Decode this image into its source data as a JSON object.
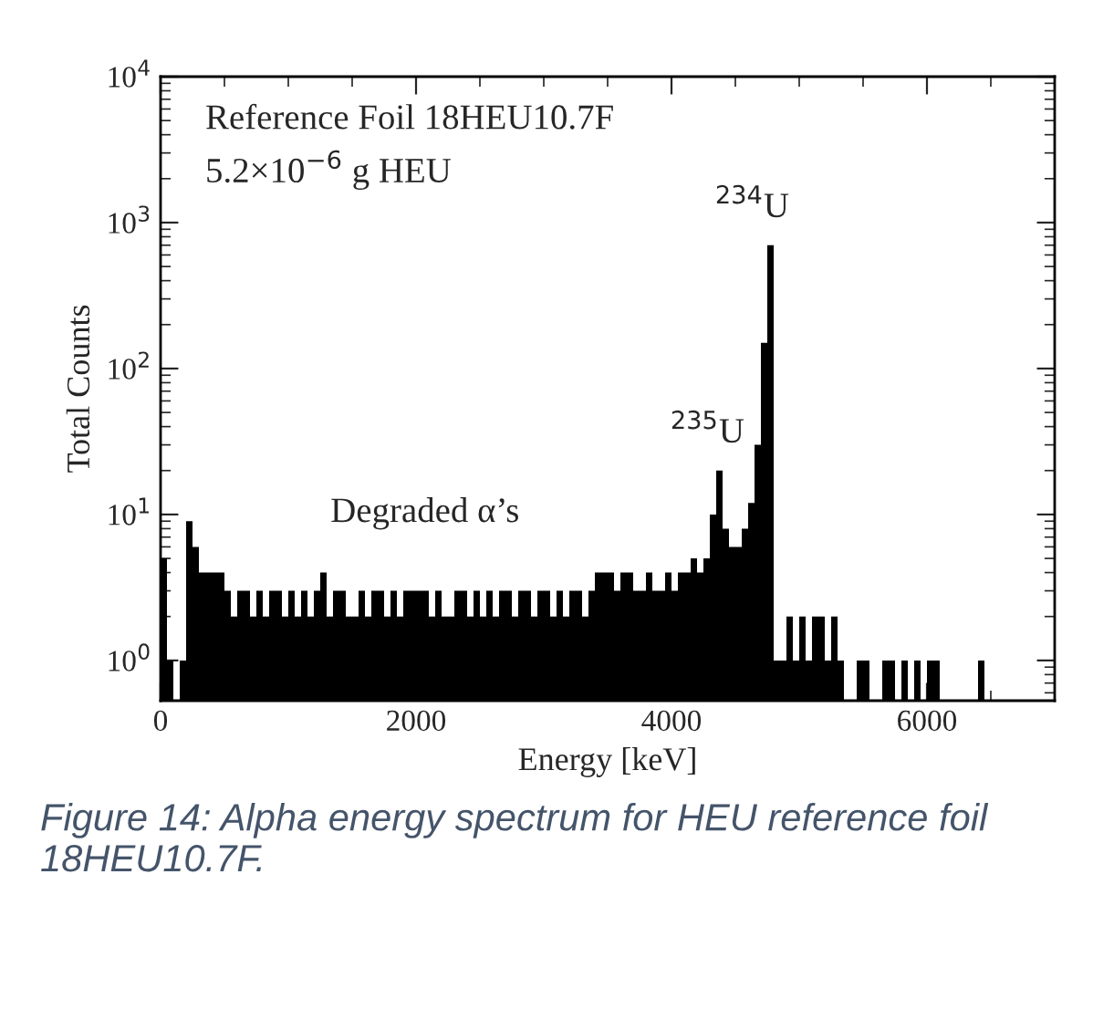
{
  "chart_data": {
    "type": "histogram",
    "xlabel": "Energy [keV]",
    "ylabel": "Total Counts",
    "bins": [
      0,
      50,
      100,
      150,
      200,
      250,
      300,
      350,
      400,
      450,
      500,
      550,
      600,
      650,
      700,
      750,
      800,
      850,
      900,
      950,
      1000,
      1050,
      1100,
      1150,
      1200,
      1250,
      1300,
      1350,
      1400,
      1450,
      1500,
      1550,
      1600,
      1650,
      1700,
      1750,
      1800,
      1850,
      1900,
      1950,
      2000,
      2050,
      2100,
      2150,
      2200,
      2250,
      2300,
      2350,
      2400,
      2450,
      2500,
      2550,
      2600,
      2650,
      2700,
      2750,
      2800,
      2850,
      2900,
      2950,
      3000,
      3050,
      3100,
      3150,
      3200,
      3250,
      3300,
      3350,
      3400,
      3450,
      3500,
      3550,
      3600,
      3650,
      3700,
      3750,
      3800,
      3850,
      3900,
      3950,
      4000,
      4050,
      4100,
      4150,
      4200,
      4250,
      4300,
      4350,
      4400,
      4450,
      4500,
      4550,
      4600,
      4650,
      4700,
      4750,
      4800,
      4850,
      4900,
      4950,
      5000,
      5050,
      5100,
      5150,
      5200,
      5250,
      5300,
      5350,
      5400,
      5450,
      5500,
      5550,
      5600,
      5650,
      5700,
      5750,
      5800,
      5850,
      5900,
      5950,
      6000,
      6050,
      6100,
      6150,
      6200,
      6250,
      6300,
      6350,
      6400,
      6450,
      6500,
      6550,
      6600,
      6650,
      6700,
      6750,
      6800,
      6850,
      6900,
      6950,
      7000
    ],
    "values": [
      5,
      1,
      null,
      1,
      9,
      6,
      4,
      4,
      4,
      4,
      3,
      2,
      3,
      3,
      2,
      3,
      2,
      3,
      3,
      2,
      3,
      2,
      3,
      2,
      3,
      4,
      2,
      3,
      3,
      2,
      2,
      3,
      2,
      3,
      3,
      2,
      3,
      2,
      3,
      3,
      3,
      3,
      2,
      3,
      2,
      2,
      3,
      3,
      2,
      3,
      2,
      3,
      2,
      3,
      3,
      2,
      3,
      3,
      2,
      3,
      3,
      2,
      3,
      2,
      3,
      3,
      2,
      3,
      4,
      4,
      4,
      3,
      4,
      4,
      3,
      3,
      4,
      3,
      3,
      4,
      3,
      4,
      4,
      5,
      4,
      5,
      10,
      20,
      8,
      6,
      6,
      8,
      12,
      30,
      150,
      700,
      1,
      1,
      2,
      1,
      2,
      1,
      2,
      2,
      1,
      2,
      1,
      null,
      null,
      1,
      1,
      null,
      null,
      1,
      1,
      null,
      1,
      null,
      1,
      null,
      1,
      1,
      null,
      null,
      null,
      null,
      null,
      null,
      1,
      null,
      null,
      null,
      null,
      null,
      null,
      null,
      null,
      null,
      null,
      null
    ],
    "color": "#000000",
    "log": "y",
    "xlim": [
      0,
      7000
    ],
    "xticks": [
      0,
      2000,
      4000,
      6000
    ],
    "ylim": [
      0.53,
      10000
    ],
    "yticks": [
      {
        "value": 1,
        "label": "10$^{0}$"
      },
      {
        "value": 10,
        "label": "10$^{1}$"
      },
      {
        "value": 100,
        "label": "10$^{2}$"
      },
      {
        "value": 1000,
        "label": "10$^{3}$"
      },
      {
        "value": 10000,
        "label": "10$^{4}$"
      }
    ],
    "annotations": [
      "Reference Foil 18HEU10.7F",
      "5.2×10$^{−6}$ g HEU",
      {
        "text": "$^{234}$U",
        "x": 4750,
        "y": 700
      },
      {
        "text": "$^{235}$U",
        "x": 4400,
        "y": 20
      },
      "Degraded α’s",
      "Figure 14: Alpha energy spectrum for HEU reference foil 18HEU10.7F."
    ]
  }
}
